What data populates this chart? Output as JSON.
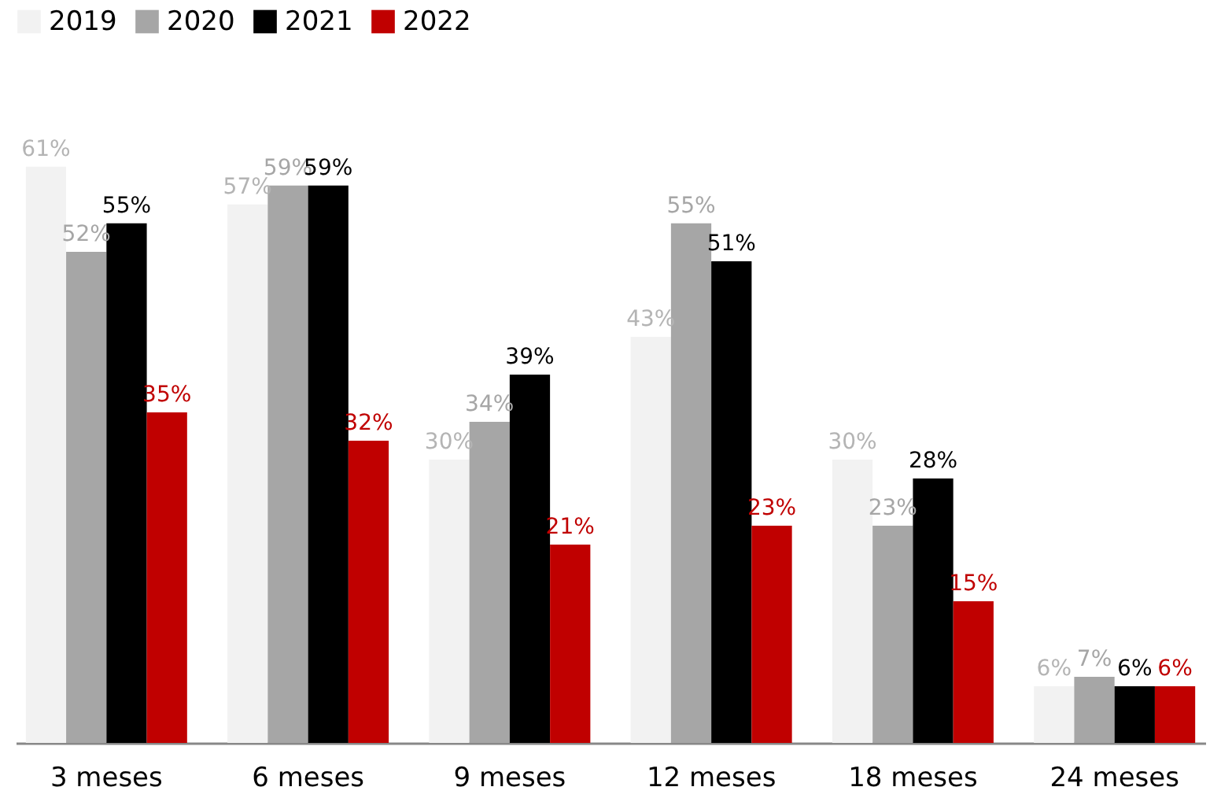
{
  "chart_data": {
    "type": "bar",
    "categories": [
      "3 meses",
      "6 meses",
      "9 meses",
      "12 meses",
      "18 meses",
      "24 meses"
    ],
    "series": [
      {
        "name": "2019",
        "color": "#f2f2f2",
        "values": [
          61,
          57,
          30,
          43,
          30,
          6
        ],
        "value_labels": [
          "61%",
          "57%",
          "30%",
          "43%",
          "30%",
          "6%"
        ]
      },
      {
        "name": "2020",
        "color": "#a6a6a6",
        "values": [
          52,
          59,
          34,
          55,
          23,
          7
        ],
        "value_labels": [
          "52%",
          "59%",
          "34%",
          "55%",
          "23%",
          "7%"
        ]
      },
      {
        "name": "2021",
        "color": "#000000",
        "values": [
          55,
          59,
          39,
          51,
          28,
          6
        ],
        "value_labels": [
          "55%",
          "59%",
          "39%",
          "51%",
          "28%",
          "6%"
        ]
      },
      {
        "name": "2022",
        "color": "#c00000",
        "values": [
          35,
          32,
          21,
          23,
          15,
          6
        ],
        "value_labels": [
          "35%",
          "32%",
          "21%",
          "23%",
          "15%",
          "6%"
        ]
      }
    ],
    "legend": "top",
    "grid": false
  }
}
